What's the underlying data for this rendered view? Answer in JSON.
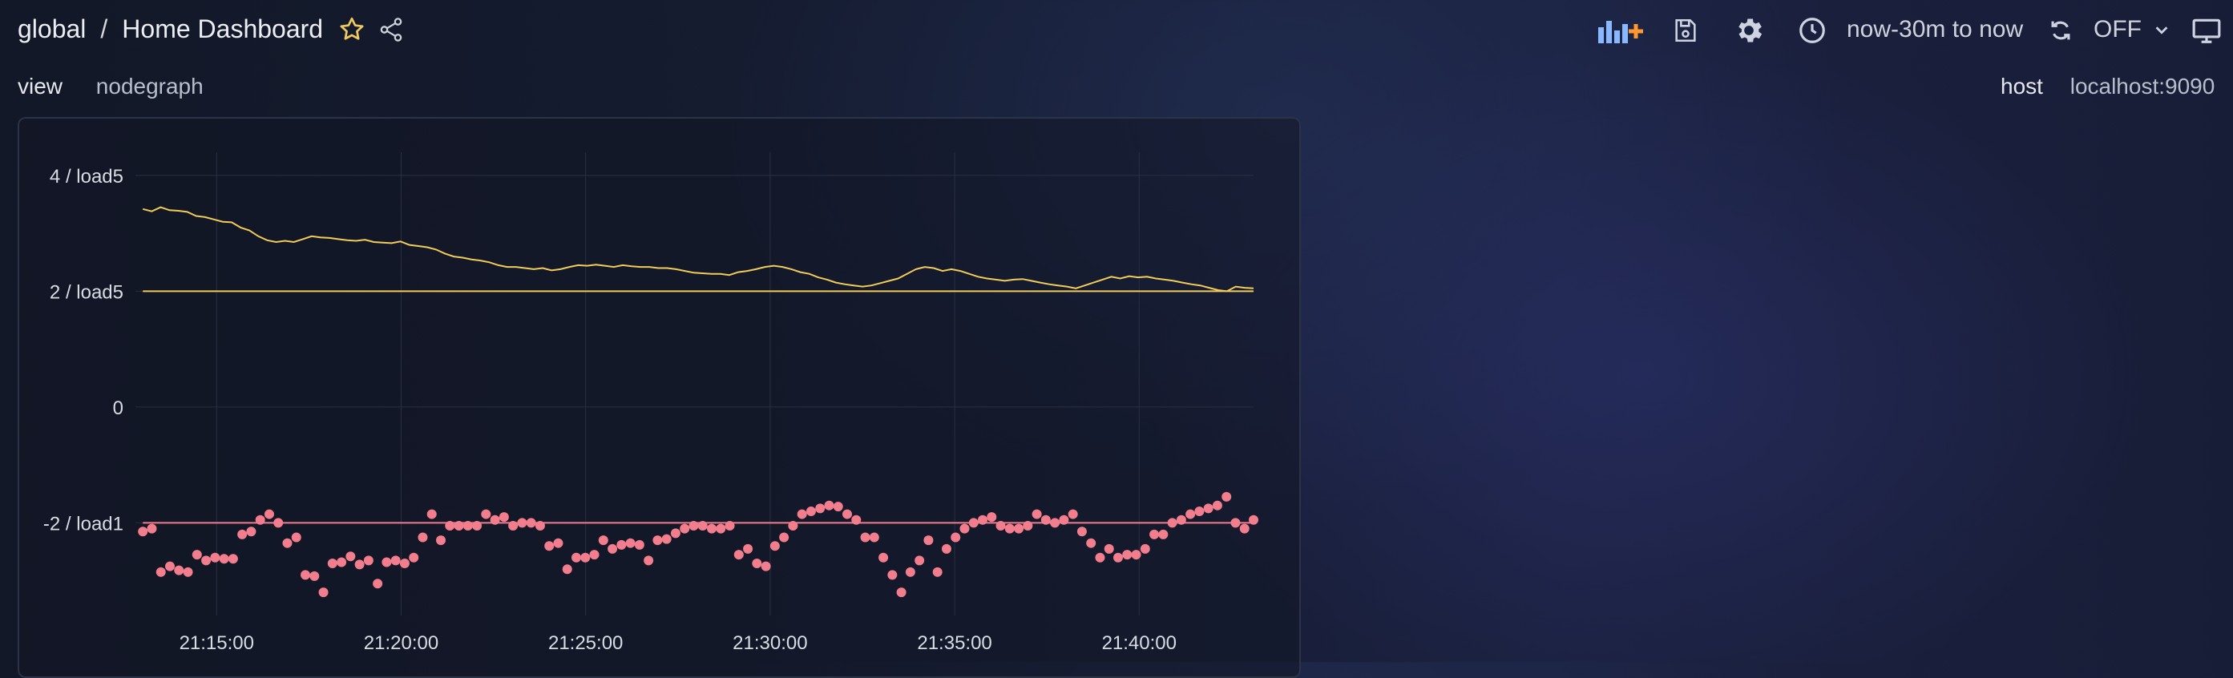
{
  "header": {
    "org": "global",
    "separator": "/",
    "dashboard_title": "Home Dashboard",
    "time_range": "now-30m to now",
    "refresh": "OFF"
  },
  "subnav": {
    "left": [
      "view",
      "nodegraph"
    ],
    "right_label": "host",
    "right_value": "localhost:9090"
  },
  "colors": {
    "load5": "#f2cc5b",
    "load1": "#f27d8d",
    "accent": "#ff9830",
    "icon": "#cdd3e0"
  },
  "chart_data": {
    "type": "line",
    "y_tick_labels": [
      "4 / load5",
      "2 / load5",
      "0",
      "-2 / load1"
    ],
    "y_ticks": [
      4,
      2,
      0,
      -2
    ],
    "ylim": [
      -3.6,
      4.4
    ],
    "x_tick_labels": [
      "21:15:00",
      "21:20:00",
      "21:25:00",
      "21:30:00",
      "21:35:00",
      "21:40:00"
    ],
    "x_ticks_min": [
      15,
      20,
      25,
      30,
      35,
      40
    ],
    "xlim_min": [
      12.8,
      43.1
    ],
    "series": [
      {
        "style": "line",
        "color": "#f2cc5b",
        "baseline": 2,
        "t_start_min": 13.0,
        "t_end_min": 43.1,
        "values": [
          3.42,
          3.38,
          3.45,
          3.4,
          3.39,
          3.37,
          3.3,
          3.28,
          3.24,
          3.2,
          3.19,
          3.1,
          3.05,
          2.95,
          2.88,
          2.85,
          2.87,
          2.85,
          2.9,
          2.95,
          2.93,
          2.92,
          2.9,
          2.88,
          2.87,
          2.89,
          2.85,
          2.84,
          2.83,
          2.86,
          2.8,
          2.78,
          2.76,
          2.72,
          2.65,
          2.6,
          2.58,
          2.55,
          2.53,
          2.5,
          2.45,
          2.42,
          2.42,
          2.4,
          2.38,
          2.4,
          2.36,
          2.38,
          2.42,
          2.45,
          2.44,
          2.46,
          2.44,
          2.42,
          2.45,
          2.43,
          2.42,
          2.42,
          2.4,
          2.4,
          2.38,
          2.35,
          2.32,
          2.31,
          2.3,
          2.3,
          2.28,
          2.33,
          2.35,
          2.38,
          2.42,
          2.44,
          2.42,
          2.38,
          2.33,
          2.3,
          2.24,
          2.2,
          2.15,
          2.12,
          2.1,
          2.08,
          2.1,
          2.14,
          2.18,
          2.22,
          2.3,
          2.38,
          2.42,
          2.4,
          2.35,
          2.38,
          2.35,
          2.3,
          2.25,
          2.22,
          2.2,
          2.18,
          2.2,
          2.21,
          2.18,
          2.15,
          2.12,
          2.1,
          2.08,
          2.05,
          2.1,
          2.15,
          2.2,
          2.25,
          2.22,
          2.26,
          2.24,
          2.25,
          2.22,
          2.2,
          2.18,
          2.15,
          2.12,
          2.1,
          2.06,
          2.02,
          2.0,
          2.08,
          2.06,
          2.05
        ]
      },
      {
        "style": "points",
        "color": "#f27d8d",
        "baseline": -2,
        "t_start_min": 13.0,
        "t_end_min": 43.1,
        "values": [
          -2.15,
          -2.1,
          -2.85,
          -2.75,
          -2.82,
          -2.85,
          -2.55,
          -2.65,
          -2.6,
          -2.62,
          -2.62,
          -2.2,
          -2.15,
          -1.95,
          -1.85,
          -2.0,
          -2.35,
          -2.25,
          -2.9,
          -2.92,
          -3.2,
          -2.7,
          -2.68,
          -2.58,
          -2.72,
          -2.65,
          -3.05,
          -2.68,
          -2.65,
          -2.7,
          -2.6,
          -2.25,
          -1.85,
          -2.3,
          -2.05,
          -2.05,
          -2.05,
          -2.05,
          -1.85,
          -1.95,
          -1.9,
          -2.05,
          -2.0,
          -2.0,
          -2.05,
          -2.4,
          -2.35,
          -2.8,
          -2.6,
          -2.6,
          -2.55,
          -2.3,
          -2.45,
          -2.38,
          -2.35,
          -2.38,
          -2.65,
          -2.3,
          -2.28,
          -2.18,
          -2.1,
          -2.05,
          -2.05,
          -2.1,
          -2.1,
          -2.05,
          -2.55,
          -2.45,
          -2.7,
          -2.75,
          -2.4,
          -2.25,
          -2.05,
          -1.85,
          -1.8,
          -1.75,
          -1.7,
          -1.72,
          -1.85,
          -1.95,
          -2.25,
          -2.25,
          -2.6,
          -2.9,
          -3.2,
          -2.85,
          -2.65,
          -2.3,
          -2.85,
          -2.45,
          -2.25,
          -2.1,
          -2.0,
          -1.95,
          -1.9,
          -2.05,
          -2.1,
          -2.1,
          -2.05,
          -1.85,
          -1.95,
          -2.0,
          -1.95,
          -1.85,
          -2.15,
          -2.35,
          -2.6,
          -2.45,
          -2.6,
          -2.55,
          -2.55,
          -2.45,
          -2.2,
          -2.2,
          -2.0,
          -1.95,
          -1.85,
          -1.8,
          -1.75,
          -1.7,
          -1.55,
          -2.0,
          -2.1,
          -1.95
        ]
      }
    ]
  }
}
